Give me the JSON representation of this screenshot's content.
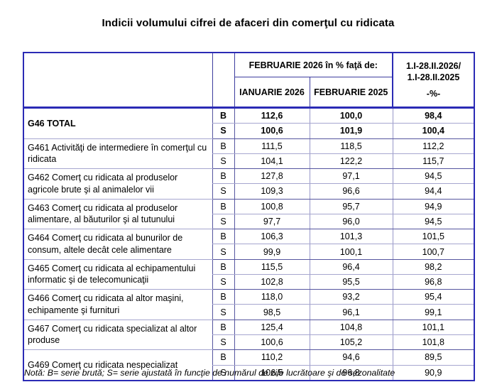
{
  "title": "Indicii volumului cifrei de afaceri din comerţul cu ridicata",
  "table": {
    "header": {
      "period_title": "FEBRUARIE 2026 în % faţă de:",
      "col_month1": "IANUARIE 2026",
      "col_month2": "FEBRUARIE 2025",
      "cumulative_line1": "1.I-28.II.2026/",
      "cumulative_line2": "1.I-28.II.2025",
      "cumulative_unit": "-%-"
    },
    "rows": [
      {
        "name": "G46 TOTAL",
        "series": [
          {
            "label": "B",
            "values": [
              "112,6",
              "100,0",
              "98,4"
            ]
          },
          {
            "label": "S",
            "values": [
              "100,6",
              "101,9",
              "100,4"
            ]
          }
        ]
      },
      {
        "name": "G461 Activităţi de intermediere în comerţul cu ridicata",
        "series": [
          {
            "label": "B",
            "values": [
              "111,5",
              "118,5",
              "112,2"
            ]
          },
          {
            "label": "S",
            "values": [
              "104,1",
              "122,2",
              "115,7"
            ]
          }
        ]
      },
      {
        "name": "G462 Comerţ cu ridicata al produselor agricole brute şi al animalelor vii",
        "series": [
          {
            "label": "B",
            "values": [
              "127,8",
              "97,1",
              "94,5"
            ]
          },
          {
            "label": "S",
            "values": [
              "109,3",
              "96,6",
              "94,4"
            ]
          }
        ]
      },
      {
        "name": "G463 Comerţ cu ridicata al produselor alimentare, al băuturilor şi al tutunului",
        "series": [
          {
            "label": "B",
            "values": [
              "100,8",
              "95,7",
              "94,9"
            ]
          },
          {
            "label": "S",
            "values": [
              "97,7",
              "96,0",
              "94,5"
            ]
          }
        ]
      },
      {
        "name": "G464 Comerţ cu ridicata al bunurilor de consum, altele decât cele alimentare",
        "series": [
          {
            "label": "B",
            "values": [
              "106,3",
              "101,3",
              "101,5"
            ]
          },
          {
            "label": "S",
            "values": [
              "99,9",
              "100,1",
              "100,7"
            ]
          }
        ]
      },
      {
        "name": "G465 Comerţ cu ridicata al echipamentului informatic şi de telecomunicaţii",
        "series": [
          {
            "label": "B",
            "values": [
              "115,5",
              "96,4",
              "98,2"
            ]
          },
          {
            "label": "S",
            "values": [
              "102,8",
              "95,5",
              "96,8"
            ]
          }
        ]
      },
      {
        "name": "G466 Comerţ cu ridicata al altor maşini, echipamente şi furnituri",
        "series": [
          {
            "label": "B",
            "values": [
              "118,0",
              "93,2",
              "95,4"
            ]
          },
          {
            "label": "S",
            "values": [
              "98,5",
              "96,1",
              "99,1"
            ]
          }
        ]
      },
      {
        "name": "G467 Comerţ cu ridicata specializat al altor produse",
        "series": [
          {
            "label": "B",
            "values": [
              "125,4",
              "104,8",
              "101,1"
            ]
          },
          {
            "label": "S",
            "values": [
              "100,6",
              "105,2",
              "101,8"
            ]
          }
        ]
      },
      {
        "name": "G469 Comerţ cu ridicata nespecializat",
        "series": [
          {
            "label": "B",
            "values": [
              "110,2",
              "94,6",
              "89,5"
            ]
          },
          {
            "label": "S",
            "values": [
              "106,5",
              "96,8",
              "90,9"
            ]
          }
        ]
      }
    ]
  },
  "note": "Notă: B= serie brută; S= serie ajustată în funcţie de numărul de zile lucrătoare şi de sezonalitate",
  "colors": {
    "border_accent": "#2b2bb5",
    "grid_light": "#9898c8",
    "grid_dark": "#55559f"
  }
}
